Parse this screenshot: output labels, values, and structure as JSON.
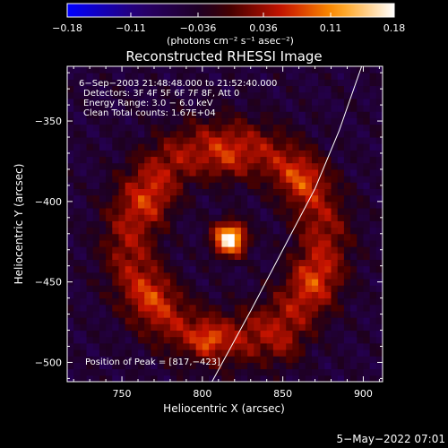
{
  "chart_data": {
    "type": "heatmap",
    "title": "Reconstructed RHESSI Image",
    "xlabel": "Heliocentric X (arcsec)",
    "ylabel": "Heliocentric Y (arcsec)",
    "xlim": [
      716,
      912
    ],
    "ylim": [
      -512,
      -316
    ],
    "x_ticks": [
      750,
      800,
      850,
      900
    ],
    "y_ticks": [
      -350,
      -400,
      -450,
      -500
    ],
    "x_tick_labels": [
      "750",
      "800",
      "850",
      "900"
    ],
    "y_tick_labels": [
      "−350",
      "−400",
      "−450",
      "−500"
    ],
    "colorbar": {
      "range": [
        -0.18,
        0.18
      ],
      "ticks": [
        -0.18,
        -0.11,
        -0.036,
        0.036,
        0.11,
        0.18
      ],
      "tick_labels": [
        "−0.18",
        "−0.11",
        "−0.036",
        "0.036",
        "0.11",
        "0.18"
      ],
      "unit_label": "(photons cm⁻² s⁻¹ asec⁻²)",
      "colormap": "red-temperature"
    },
    "info_lines": [
      "6−Sep−2003 21:48:48.000 to 21:52:40.000",
      "Detectors: 3F 4F 5F 6F 7F 8F, Att 0",
      "Energy Range: 3.0 − 6.0 keV",
      "Clean     Total counts: 1.67E+04"
    ],
    "peak_label": "Position of Peak = [817,−423]",
    "peak": {
      "x": 817,
      "y": -423,
      "value": 0.18
    },
    "background_level": -0.05,
    "limb_arc": [
      {
        "x": 806,
        "y": -512
      },
      {
        "x": 830,
        "y": -468
      },
      {
        "x": 850,
        "y": -430
      },
      {
        "x": 870,
        "y": -392
      },
      {
        "x": 885,
        "y": -356
      },
      {
        "x": 899,
        "y": -316
      }
    ],
    "emission_components": [
      {
        "x": 817,
        "y": -423,
        "amp": 0.23,
        "sigma": 7
      },
      {
        "x": 804,
        "y": -486,
        "amp": 0.06,
        "sigma": 6
      },
      {
        "x": 770,
        "y": -458,
        "amp": 0.04,
        "sigma": 10
      },
      {
        "x": 770,
        "y": -400,
        "amp": 0.04,
        "sigma": 10
      },
      {
        "x": 815,
        "y": -375,
        "amp": 0.04,
        "sigma": 10
      },
      {
        "x": 862,
        "y": -385,
        "amp": 0.045,
        "sigma": 9
      },
      {
        "x": 868,
        "y": -448,
        "amp": 0.04,
        "sigma": 10
      },
      {
        "x": 852,
        "y": -492,
        "amp": 0.035,
        "sigma": 8
      }
    ],
    "ring": {
      "x": 815,
      "y": -425,
      "radius": 60,
      "width": 18,
      "amp": 0.085
    }
  },
  "footer": {
    "date_label": "5−May−2022 07:01"
  }
}
